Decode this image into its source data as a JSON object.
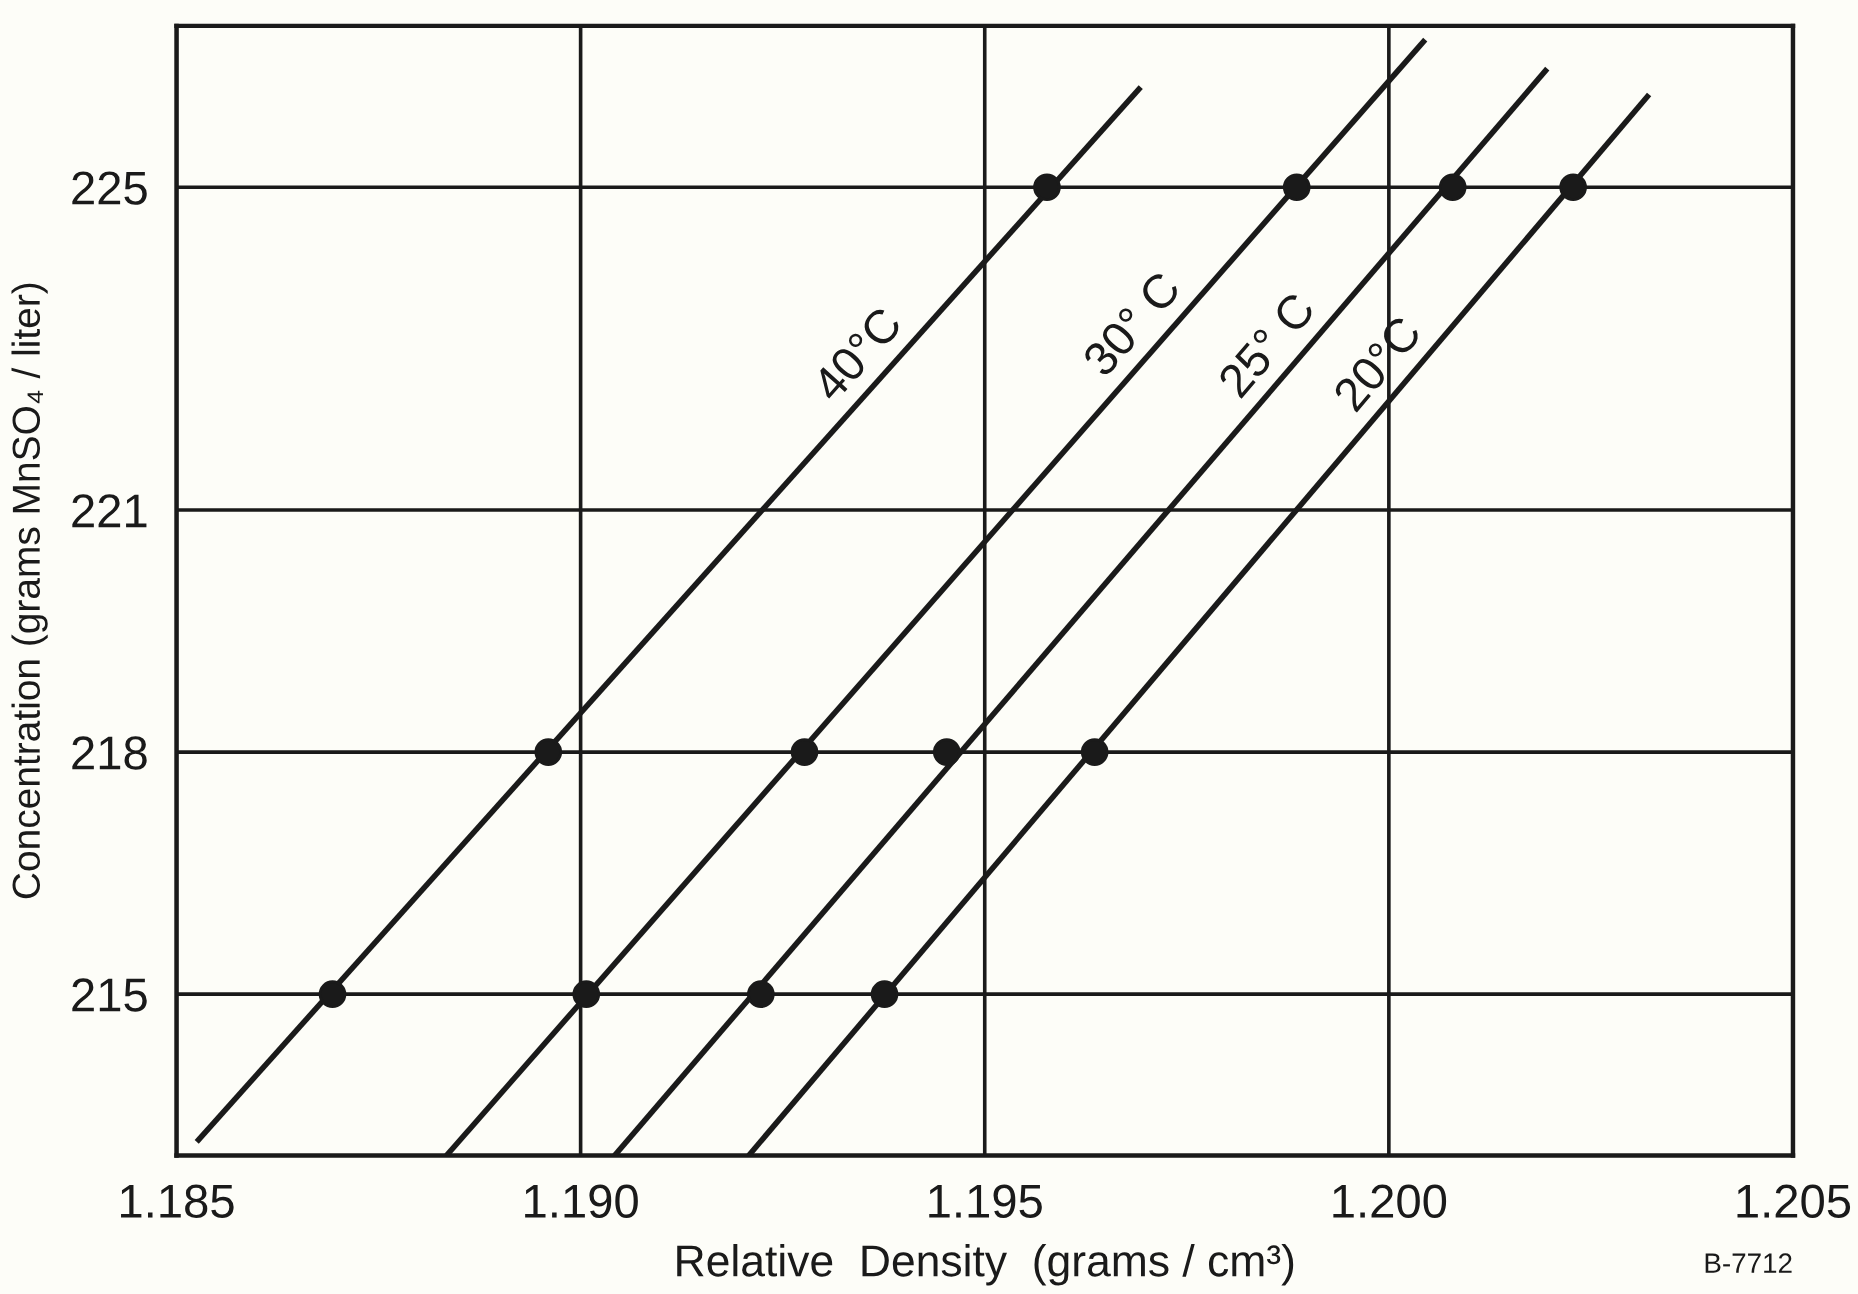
{
  "chart_data": {
    "type": "scatter",
    "xlabel": "Relative  Density  (grams / cm³)",
    "ylabel": "Concentration (grams MnSO₄ / liter)",
    "xlim": [
      1.185,
      1.205
    ],
    "ylim": [
      213,
      227
    ],
    "xticks": [
      1.185,
      {
        "value": 1.19,
        "label": "1.190"
      },
      1.195,
      {
        "value": 1.2,
        "label": "1.200"
      },
      1.205
    ],
    "yticks": [
      215,
      218,
      221,
      225
    ],
    "grid": true,
    "marker": "circle",
    "series": [
      {
        "type": "line",
        "name": "40°C",
        "color": "#1a1a1a",
        "x": [
          1.18525,
          1.19693
        ],
        "values": [
          213.17,
          226.24
        ],
        "marker": "none"
      },
      {
        "color": "#1a1a1a",
        "x": [
          1.18693,
          1.1896,
          1.19577
        ],
        "values": [
          215,
          218,
          225
        ]
      },
      {
        "type": "line",
        "name": "30° C",
        "color": "#1a1a1a",
        "x": [
          1.18834,
          1.20045
        ],
        "values": [
          213.0,
          226.83
        ],
        "marker": "none"
      },
      {
        "color": "#1a1a1a",
        "x": [
          1.19007,
          1.19277,
          1.19886
        ],
        "values": [
          215,
          218,
          225
        ]
      },
      {
        "type": "line",
        "name": "25° C",
        "color": "#1a1a1a",
        "x": [
          1.19042,
          1.20196
        ],
        "values": [
          213.0,
          226.47
        ],
        "marker": "none"
      },
      {
        "color": "#1a1a1a",
        "x": [
          1.19223,
          1.19453,
          1.20079
        ],
        "values": [
          215,
          218,
          225
        ]
      },
      {
        "type": "line",
        "name": "20°C",
        "color": "#1a1a1a",
        "x": [
          1.19208,
          1.20322
        ],
        "values": [
          213.0,
          226.15
        ],
        "marker": "none"
      },
      {
        "color": "#1a1a1a",
        "x": [
          1.19376,
          1.19636,
          1.20228
        ],
        "values": [
          215,
          218,
          225
        ]
      }
    ],
    "annotations": [
      "B-7712"
    ]
  }
}
